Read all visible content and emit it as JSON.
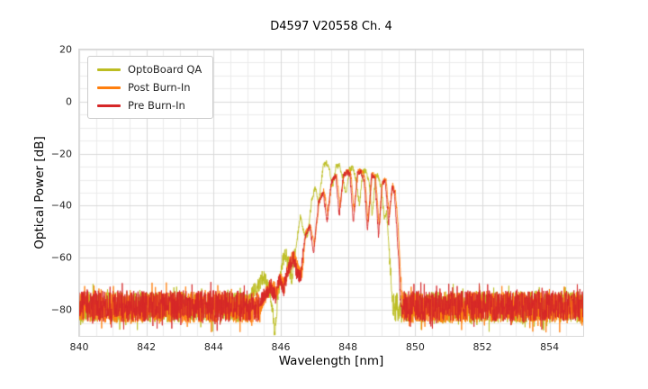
{
  "chart_data": {
    "type": "line",
    "title": "D4597 V20558 Ch. 4",
    "xlabel": "Wavelength [nm]",
    "ylabel": "Optical Power [dB]",
    "xlim": [
      840,
      855
    ],
    "ylim": [
      -90,
      20
    ],
    "x_minor_step": 0.5,
    "y_minor_step": 5,
    "grid": true,
    "grid_major_color": "#d9d9d9",
    "grid_minor_color": "#ebebeb",
    "background_color": "#ffffff",
    "legend_position": "upper left",
    "xticks": [
      {
        "value": 840,
        "label": "840"
      },
      {
        "value": 842,
        "label": "842"
      },
      {
        "value": 844,
        "label": "844"
      },
      {
        "value": 846,
        "label": "846"
      },
      {
        "value": 848,
        "label": "848"
      },
      {
        "value": 850,
        "label": "850"
      },
      {
        "value": 852,
        "label": "852"
      },
      {
        "value": 854,
        "label": "854"
      }
    ],
    "yticks": [
      {
        "value": 20,
        "label": "20"
      },
      {
        "value": 0,
        "label": "0"
      },
      {
        "value": -20,
        "label": "−20"
      },
      {
        "value": -40,
        "label": "−40"
      },
      {
        "value": -60,
        "label": "−60"
      },
      {
        "value": -80,
        "label": "−80"
      }
    ],
    "series": [
      {
        "name": "OptoBoard QA",
        "color": "#bcbd22",
        "noise_floor_db": -79,
        "noise_amplitude_db": 6,
        "signal_range_nm": [
          845.05,
          849.36
        ],
        "peak_power_db": -23.5,
        "peak_wavelength_nm": 847.36,
        "points": [
          [
            845.05,
            -77
          ],
          [
            845.2,
            -73
          ],
          [
            845.35,
            -70
          ],
          [
            845.5,
            -67
          ],
          [
            845.62,
            -71
          ],
          [
            845.72,
            -76
          ],
          [
            845.82,
            -89
          ],
          [
            845.92,
            -74
          ],
          [
            846.02,
            -64
          ],
          [
            846.12,
            -58
          ],
          [
            846.22,
            -62
          ],
          [
            846.32,
            -68
          ],
          [
            846.45,
            -56
          ],
          [
            846.58,
            -44
          ],
          [
            846.68,
            -50
          ],
          [
            846.8,
            -52
          ],
          [
            846.93,
            -37
          ],
          [
            847.03,
            -33
          ],
          [
            847.13,
            -39
          ],
          [
            847.26,
            -25
          ],
          [
            847.36,
            -23.5
          ],
          [
            847.46,
            -27
          ],
          [
            847.54,
            -33
          ],
          [
            847.64,
            -25
          ],
          [
            847.74,
            -24.5
          ],
          [
            847.84,
            -29
          ],
          [
            847.94,
            -36
          ],
          [
            848.04,
            -26
          ],
          [
            848.14,
            -25.5
          ],
          [
            848.24,
            -30
          ],
          [
            848.34,
            -40
          ],
          [
            848.44,
            -27
          ],
          [
            848.54,
            -26.5
          ],
          [
            848.64,
            -32
          ],
          [
            848.72,
            -44
          ],
          [
            848.82,
            -29
          ],
          [
            848.9,
            -28.5
          ],
          [
            849.0,
            -34
          ],
          [
            849.08,
            -45
          ],
          [
            849.15,
            -42
          ],
          [
            849.22,
            -56
          ],
          [
            849.3,
            -72
          ],
          [
            849.36,
            -84
          ]
        ]
      },
      {
        "name": "Post Burn-In",
        "color": "#ff7f0e",
        "noise_floor_db": -79,
        "noise_amplitude_db": 6,
        "signal_range_nm": [
          845.4,
          849.63
        ],
        "peak_power_db": -26.5,
        "peak_wavelength_nm": 847.98,
        "points": [
          [
            845.4,
            -78
          ],
          [
            845.6,
            -73
          ],
          [
            845.75,
            -70
          ],
          [
            845.88,
            -74
          ],
          [
            845.98,
            -67
          ],
          [
            846.1,
            -71
          ],
          [
            846.25,
            -63
          ],
          [
            846.4,
            -59
          ],
          [
            846.5,
            -64
          ],
          [
            846.62,
            -66
          ],
          [
            846.75,
            -50
          ],
          [
            846.88,
            -47
          ],
          [
            847.0,
            -55
          ],
          [
            847.15,
            -38
          ],
          [
            847.28,
            -34
          ],
          [
            847.4,
            -43
          ],
          [
            847.53,
            -30
          ],
          [
            847.66,
            -28
          ],
          [
            847.76,
            -40
          ],
          [
            847.88,
            -28
          ],
          [
            847.98,
            -26.5
          ],
          [
            848.08,
            -27
          ],
          [
            848.18,
            -42
          ],
          [
            848.3,
            -27
          ],
          [
            848.4,
            -26.5
          ],
          [
            848.5,
            -29
          ],
          [
            848.6,
            -46
          ],
          [
            848.72,
            -28
          ],
          [
            848.82,
            -28.5
          ],
          [
            848.93,
            -48
          ],
          [
            849.03,
            -31
          ],
          [
            849.13,
            -30
          ],
          [
            849.23,
            -44
          ],
          [
            849.33,
            -32
          ],
          [
            849.4,
            -34
          ],
          [
            849.48,
            -45
          ],
          [
            849.56,
            -65
          ],
          [
            849.63,
            -80
          ]
        ]
      },
      {
        "name": "Pre Burn-In",
        "color": "#d62728",
        "noise_floor_db": -78.5,
        "noise_amplitude_db": 6,
        "signal_range_nm": [
          845.35,
          849.6
        ],
        "peak_power_db": -27,
        "peak_wavelength_nm": 847.96,
        "points": [
          [
            845.35,
            -78
          ],
          [
            845.55,
            -74
          ],
          [
            845.7,
            -71
          ],
          [
            845.84,
            -75
          ],
          [
            845.96,
            -68
          ],
          [
            846.08,
            -72
          ],
          [
            846.22,
            -64
          ],
          [
            846.38,
            -60
          ],
          [
            846.48,
            -66
          ],
          [
            846.58,
            -68
          ],
          [
            846.72,
            -52
          ],
          [
            846.86,
            -48
          ],
          [
            846.98,
            -58
          ],
          [
            847.12,
            -39
          ],
          [
            847.26,
            -35
          ],
          [
            847.38,
            -46
          ],
          [
            847.5,
            -31
          ],
          [
            847.64,
            -28.5
          ],
          [
            847.74,
            -44
          ],
          [
            847.86,
            -28.5
          ],
          [
            847.96,
            -27
          ],
          [
            848.06,
            -28
          ],
          [
            848.16,
            -47
          ],
          [
            848.28,
            -27.5
          ],
          [
            848.38,
            -27
          ],
          [
            848.48,
            -30
          ],
          [
            848.58,
            -50
          ],
          [
            848.7,
            -28.5
          ],
          [
            848.8,
            -29
          ],
          [
            848.91,
            -52
          ],
          [
            849.01,
            -31.5
          ],
          [
            849.11,
            -30.5
          ],
          [
            849.21,
            -47
          ],
          [
            849.31,
            -32.5
          ],
          [
            849.38,
            -35
          ],
          [
            849.46,
            -50
          ],
          [
            849.54,
            -70
          ],
          [
            849.6,
            -82
          ]
        ]
      }
    ]
  }
}
